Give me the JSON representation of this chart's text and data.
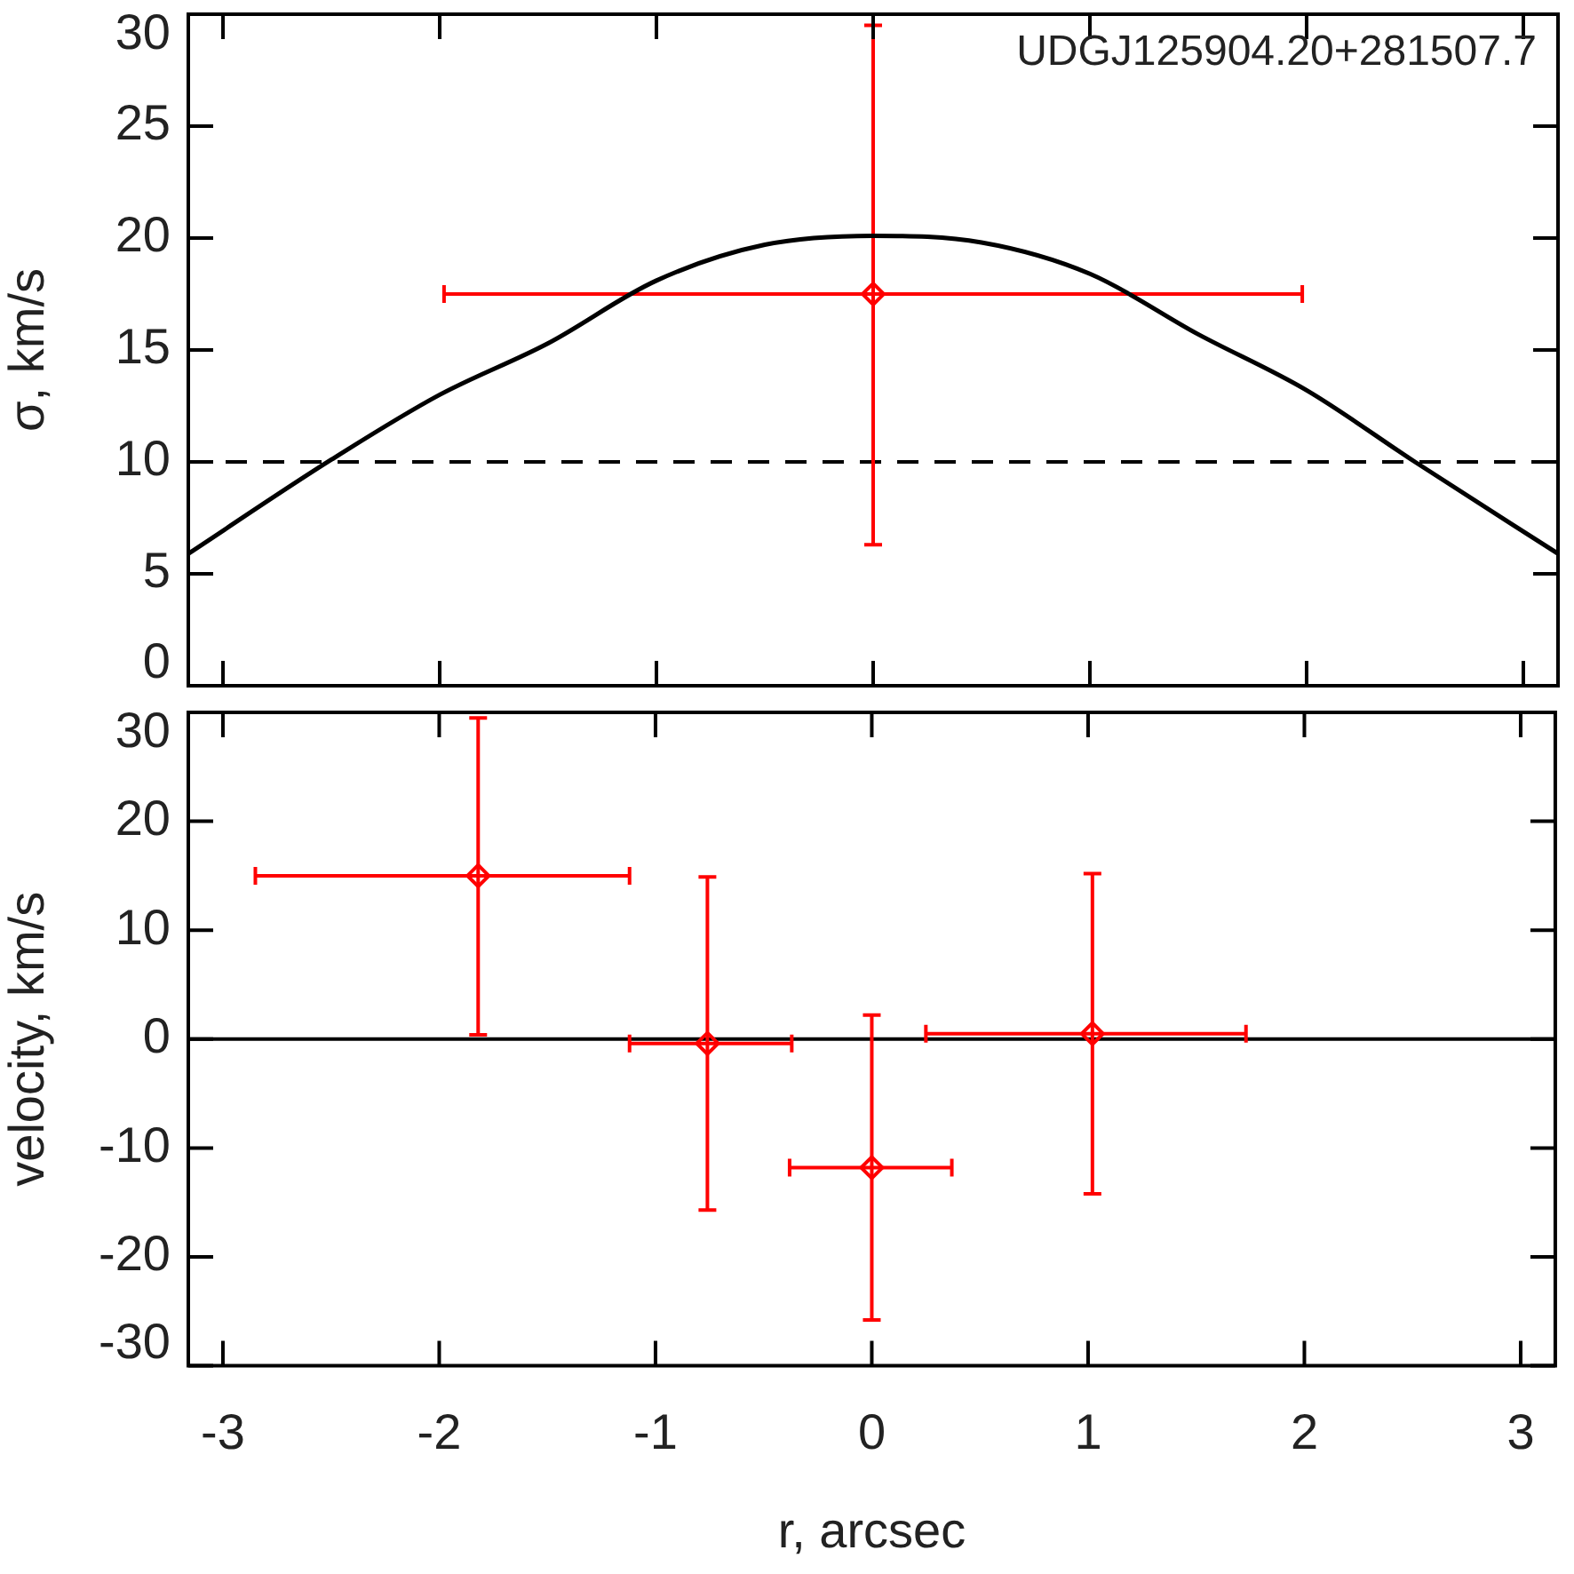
{
  "chart_data": [
    {
      "type": "scatter",
      "ylabel": "σ, km/s",
      "xlim": [
        -3.16,
        3.16
      ],
      "xticks": [
        -3,
        -2,
        -1,
        0,
        1,
        2,
        3
      ],
      "ylim": [
        0,
        30
      ],
      "yticks": [
        0,
        5,
        10,
        15,
        20,
        25,
        30
      ],
      "tick_labels": "y",
      "annotations": [
        "UDGJ125904.20+281507.7"
      ],
      "ref_lines": [
        {
          "axis": "y",
          "value": 10,
          "color": "#000000",
          "line_style": "dashed"
        }
      ],
      "series": [
        {
          "type": "line",
          "color": "#000000",
          "marker": "none",
          "line_style": "solid",
          "x": [
            -3.16,
            -2.5,
            -2,
            -1.5,
            -1,
            -0.5,
            0,
            0.5,
            1,
            1.5,
            2,
            2.5,
            3.16
          ],
          "values": [
            5.9,
            10.1,
            13.0,
            15.3,
            18.1,
            19.7,
            20.1,
            19.8,
            18.4,
            15.7,
            13.2,
            10.0,
            5.9
          ]
        },
        {
          "type": "scatter",
          "color": "#ff0000",
          "marker": "diamond",
          "x": [
            0
          ],
          "values": [
            17.5
          ],
          "errors": [
            [
              6.3,
              29.5
            ]
          ],
          "xerrors": [
            [
              -1.98,
              1.98
            ]
          ]
        }
      ]
    },
    {
      "type": "scatter",
      "ylabel": "velocity, km/s",
      "xlabel": "r, arcsec",
      "xlim": [
        -3.16,
        3.16
      ],
      "xticks": [
        -3,
        -2,
        -1,
        0,
        1,
        2,
        3
      ],
      "ylim": [
        -30,
        30
      ],
      "yticks": [
        -30,
        -20,
        -10,
        0,
        10,
        20,
        30
      ],
      "ref_lines": [
        {
          "axis": "y",
          "value": 0,
          "color": "#000000",
          "line_style": "solid"
        }
      ],
      "series": [
        {
          "type": "scatter",
          "color": "#ff0000",
          "marker": "diamond",
          "x": [
            -1.82,
            -0.76,
            0,
            1.02
          ],
          "values": [
            15,
            -0.4,
            -11.8,
            0.5
          ],
          "errors": [
            [
              0.4,
              29.5
            ],
            [
              -15.7,
              14.9
            ],
            [
              -25.8,
              2.2
            ],
            [
              -14.2,
              15.2
            ]
          ],
          "xerrors": [
            [
              -2.85,
              -1.12
            ],
            [
              -1.12,
              -0.37
            ],
            [
              -0.38,
              0.37
            ],
            [
              0.25,
              1.73
            ]
          ]
        }
      ]
    }
  ]
}
